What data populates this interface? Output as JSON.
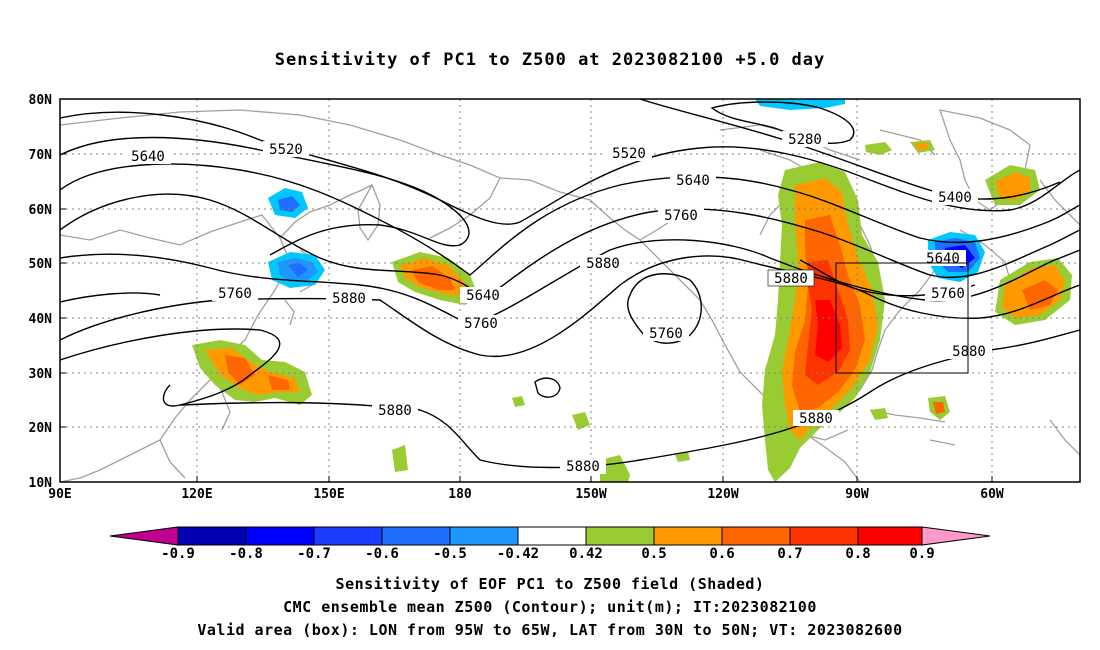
{
  "title": "Sensitivity of PC1 to Z500 at 2023082100 +5.0 day",
  "footer": {
    "line1": "Sensitivity of EOF PC1 to Z500 field (Shaded)",
    "line2": "CMC ensemble mean Z500 (Contour); unit(m); IT:2023082100",
    "line3": "Valid area (box): LON from 95W to 65W, LAT from 30N to 50N; VT: 2023082600"
  },
  "map": {
    "lat_labels": [
      "80N",
      "70N",
      "60N",
      "50N",
      "40N",
      "30N",
      "20N",
      "10N"
    ],
    "lon_labels": [
      "90E",
      "120E",
      "150E",
      "180",
      "150W",
      "120W",
      "90W",
      "60W"
    ],
    "contour_labels": [
      {
        "text": "5520"
      },
      {
        "text": "5520"
      },
      {
        "text": "5640"
      },
      {
        "text": "5640"
      },
      {
        "text": "5640"
      },
      {
        "text": "5640"
      },
      {
        "text": "5760"
      },
      {
        "text": "5760"
      },
      {
        "text": "5760"
      },
      {
        "text": "5760"
      },
      {
        "text": "5760"
      },
      {
        "text": "5880"
      },
      {
        "text": "5880"
      },
      {
        "text": "5880"
      },
      {
        "text": "5880"
      },
      {
        "text": "5880"
      },
      {
        "text": "5880"
      },
      {
        "text": "5880"
      },
      {
        "text": "5400"
      },
      {
        "text": "5280"
      }
    ],
    "valid_box": {
      "lon_west": "95W",
      "lon_east": "65W",
      "lat_south": "30N",
      "lat_north": "50N"
    }
  },
  "colorbar": {
    "labels": [
      "-0.9",
      "-0.8",
      "-0.7",
      "-0.6",
      "-0.5",
      "-0.42",
      "0.42",
      "0.5",
      "0.6",
      "0.7",
      "0.8",
      "0.9"
    ],
    "colors": [
      "#c00090",
      "#0000b4",
      "#0000ff",
      "#1e3cff",
      "#1e6eff",
      "#1e96ff",
      "#00c8ff",
      "#ffffff",
      "#99cc33",
      "#ff9900",
      "#ff6600",
      "#ff3300",
      "#ff0000",
      "#ff99cc"
    ]
  },
  "colors": {
    "contour": "#000000",
    "coast": "#a0a0a0",
    "grid": "#808080"
  }
}
